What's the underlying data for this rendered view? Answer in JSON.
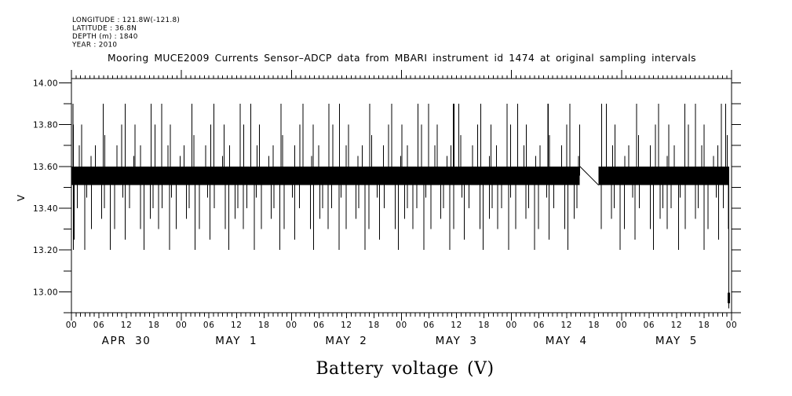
{
  "header": {
    "meta_lines": [
      "LONGITUDE : 121.8W(-121.8)",
      "LATITUDE : 36.8N",
      "DEPTH (m) : 1840",
      "YEAR : 2010"
    ],
    "title": "Mooring MUCE2009 Currents Sensor–ADCP data from MBARI instrument id 1474 at original sampling intervals"
  },
  "axes": {
    "y_label": "V",
    "bottom_label": "Battery voltage (V)",
    "y_major_tick_labels": [
      "13.00",
      "13.20",
      "13.40",
      "13.60",
      "13.80",
      "14.00"
    ],
    "x_hour_tick_sequence": [
      "00",
      "06",
      "12",
      "18"
    ],
    "day_labels": [
      "APR 30",
      "MAY 1",
      "MAY 2",
      "MAY 3",
      "MAY 4",
      "MAY 5"
    ]
  },
  "chart_data": {
    "type": "line",
    "title": "Mooring MUCE2009 Currents Sensor–ADCP data from MBARI instrument id 1474 at original sampling intervals",
    "xlabel": "Battery voltage (V)",
    "ylabel": "V",
    "grid": false,
    "x_axis": {
      "start": "APR 30 00:00 (2010)",
      "end": "MAY 6 00:00 (2010)",
      "hours_total": 144,
      "minor_tick_every_hours": 1,
      "labeled_tick_every_hours": 6,
      "hour_tick_labels_repeating": [
        "00",
        "06",
        "12",
        "18"
      ],
      "day_labels": [
        "APR 30",
        "MAY 1",
        "MAY 2",
        "MAY 3",
        "MAY 4",
        "MAY 5"
      ]
    },
    "y_axis": {
      "min": 12.9,
      "max": 14.02,
      "major_ticks": [
        13.0,
        13.2,
        13.4,
        13.6,
        13.8,
        14.0
      ],
      "minor_step": 0.1,
      "units": "V"
    },
    "baseline_band": {
      "low": 13.51,
      "high": 13.6,
      "segments_hours": [
        [
          0.0,
          110.9
        ],
        [
          115.0,
          143.5
        ]
      ],
      "description": "battery voltage oscillates densely between 13.5 and 13.6 V (renders as solid band)"
    },
    "gap": {
      "start_hour": 110.9,
      "end_hour": 115.0,
      "connector": [
        [
          110.9,
          13.6
        ],
        [
          115.0,
          13.51
        ]
      ]
    },
    "final_drop": {
      "hour": 143.4,
      "value": 12.92,
      "thick_mark_v": [
        12.995,
        12.945
      ]
    },
    "up_spikes": [
      [
        0.3,
        13.9
      ],
      [
        0.45,
        13.8
      ],
      [
        1.7,
        13.7
      ],
      [
        2.2,
        13.8
      ],
      [
        4.3,
        13.65
      ],
      [
        5.2,
        13.7
      ],
      [
        6.9,
        13.9
      ],
      [
        7.3,
        13.75
      ],
      [
        9.9,
        13.7
      ],
      [
        11.0,
        13.8
      ],
      [
        11.7,
        13.9
      ],
      [
        13.6,
        13.65
      ],
      [
        13.9,
        13.8
      ],
      [
        15.1,
        13.7
      ],
      [
        17.4,
        13.9
      ],
      [
        18.2,
        13.8
      ],
      [
        19.7,
        13.9
      ],
      [
        21.1,
        13.7
      ],
      [
        21.6,
        13.8
      ],
      [
        23.7,
        13.65
      ],
      [
        24.6,
        13.7
      ],
      [
        26.3,
        13.9
      ],
      [
        26.7,
        13.75
      ],
      [
        29.3,
        13.7
      ],
      [
        30.4,
        13.8
      ],
      [
        31.1,
        13.9
      ],
      [
        33.0,
        13.65
      ],
      [
        33.3,
        13.8
      ],
      [
        34.5,
        13.7
      ],
      [
        36.8,
        13.9
      ],
      [
        37.6,
        13.8
      ],
      [
        39.1,
        13.9
      ],
      [
        40.5,
        13.7
      ],
      [
        41.0,
        13.8
      ],
      [
        43.1,
        13.65
      ],
      [
        44.0,
        13.7
      ],
      [
        45.7,
        13.9
      ],
      [
        46.1,
        13.75
      ],
      [
        48.7,
        13.7
      ],
      [
        49.8,
        13.8
      ],
      [
        50.5,
        13.9
      ],
      [
        52.4,
        13.65
      ],
      [
        52.7,
        13.8
      ],
      [
        53.9,
        13.7
      ],
      [
        56.2,
        13.9
      ],
      [
        57.0,
        13.8
      ],
      [
        58.5,
        13.9
      ],
      [
        59.9,
        13.7
      ],
      [
        60.4,
        13.8
      ],
      [
        62.5,
        13.65
      ],
      [
        63.4,
        13.7
      ],
      [
        65.1,
        13.9
      ],
      [
        65.5,
        13.75
      ],
      [
        68.1,
        13.7
      ],
      [
        69.2,
        13.8
      ],
      [
        69.9,
        13.9
      ],
      [
        71.8,
        13.65
      ],
      [
        72.1,
        13.8
      ],
      [
        73.3,
        13.7
      ],
      [
        75.6,
        13.9
      ],
      [
        76.4,
        13.8
      ],
      [
        77.9,
        13.9
      ],
      [
        79.3,
        13.7
      ],
      [
        79.8,
        13.8
      ],
      [
        81.9,
        13.65
      ],
      [
        82.8,
        13.7
      ],
      [
        83.3,
        13.9
      ],
      [
        83.45,
        13.9
      ],
      [
        84.5,
        13.9
      ],
      [
        84.9,
        13.75
      ],
      [
        87.5,
        13.7
      ],
      [
        88.6,
        13.8
      ],
      [
        89.3,
        13.9
      ],
      [
        91.2,
        13.65
      ],
      [
        91.5,
        13.8
      ],
      [
        92.7,
        13.7
      ],
      [
        95.0,
        13.9
      ],
      [
        95.8,
        13.8
      ],
      [
        97.3,
        13.9
      ],
      [
        98.7,
        13.7
      ],
      [
        99.2,
        13.8
      ],
      [
        101.3,
        13.65
      ],
      [
        102.2,
        13.7
      ],
      [
        103.9,
        13.9
      ],
      [
        104.05,
        13.9
      ],
      [
        104.3,
        13.75
      ],
      [
        106.9,
        13.7
      ],
      [
        108.0,
        13.8
      ],
      [
        108.7,
        13.9
      ],
      [
        110.6,
        13.65
      ],
      [
        110.9,
        13.8
      ],
      [
        115.7,
        13.9
      ],
      [
        116.7,
        13.9
      ],
      [
        118.1,
        13.7
      ],
      [
        118.6,
        13.8
      ],
      [
        120.7,
        13.65
      ],
      [
        121.6,
        13.7
      ],
      [
        123.3,
        13.9
      ],
      [
        123.7,
        13.75
      ],
      [
        126.3,
        13.7
      ],
      [
        127.4,
        13.8
      ],
      [
        128.1,
        13.9
      ],
      [
        130.0,
        13.65
      ],
      [
        130.3,
        13.8
      ],
      [
        131.5,
        13.7
      ],
      [
        133.8,
        13.9
      ],
      [
        134.6,
        13.8
      ],
      [
        136.1,
        13.9
      ],
      [
        137.5,
        13.7
      ],
      [
        138.0,
        13.8
      ],
      [
        140.1,
        13.65
      ],
      [
        141.0,
        13.7
      ],
      [
        141.8,
        13.9
      ],
      [
        142.7,
        13.9
      ],
      [
        143.1,
        13.75
      ]
    ],
    "down_spikes": [
      [
        0.45,
        13.2
      ],
      [
        0.5,
        13.3
      ],
      [
        0.6,
        13.25
      ],
      [
        1.3,
        13.4
      ],
      [
        2.9,
        13.2
      ],
      [
        3.3,
        13.45
      ],
      [
        4.4,
        13.3
      ],
      [
        6.6,
        13.35
      ],
      [
        7.2,
        13.4
      ],
      [
        8.5,
        13.2
      ],
      [
        9.4,
        13.3
      ],
      [
        11.2,
        13.45
      ],
      [
        11.7,
        13.25
      ],
      [
        12.7,
        13.4
      ],
      [
        15.1,
        13.3
      ],
      [
        15.8,
        13.2
      ],
      [
        17.2,
        13.35
      ],
      [
        17.8,
        13.4
      ],
      [
        19.0,
        13.3
      ],
      [
        19.8,
        13.4
      ],
      [
        21.4,
        13.2
      ],
      [
        21.8,
        13.45
      ],
      [
        22.9,
        13.3
      ],
      [
        25.1,
        13.35
      ],
      [
        25.7,
        13.4
      ],
      [
        27.0,
        13.2
      ],
      [
        27.9,
        13.3
      ],
      [
        29.7,
        13.45
      ],
      [
        30.2,
        13.25
      ],
      [
        31.2,
        13.4
      ],
      [
        33.6,
        13.3
      ],
      [
        34.3,
        13.2
      ],
      [
        35.7,
        13.35
      ],
      [
        36.3,
        13.4
      ],
      [
        37.5,
        13.3
      ],
      [
        38.3,
        13.4
      ],
      [
        39.9,
        13.2
      ],
      [
        40.3,
        13.45
      ],
      [
        41.4,
        13.3
      ],
      [
        43.6,
        13.35
      ],
      [
        44.2,
        13.4
      ],
      [
        45.5,
        13.2
      ],
      [
        46.4,
        13.3
      ],
      [
        48.2,
        13.45
      ],
      [
        48.7,
        13.25
      ],
      [
        49.7,
        13.4
      ],
      [
        52.1,
        13.3
      ],
      [
        52.8,
        13.2
      ],
      [
        54.2,
        13.35
      ],
      [
        54.8,
        13.4
      ],
      [
        56.0,
        13.3
      ],
      [
        56.8,
        13.4
      ],
      [
        58.4,
        13.2
      ],
      [
        58.8,
        13.45
      ],
      [
        59.9,
        13.3
      ],
      [
        62.1,
        13.35
      ],
      [
        62.7,
        13.4
      ],
      [
        64.0,
        13.2
      ],
      [
        64.9,
        13.3
      ],
      [
        66.7,
        13.45
      ],
      [
        67.2,
        13.25
      ],
      [
        68.2,
        13.4
      ],
      [
        70.6,
        13.3
      ],
      [
        71.3,
        13.2
      ],
      [
        72.7,
        13.35
      ],
      [
        73.3,
        13.4
      ],
      [
        74.5,
        13.3
      ],
      [
        75.3,
        13.4
      ],
      [
        76.9,
        13.2
      ],
      [
        77.3,
        13.45
      ],
      [
        78.4,
        13.3
      ],
      [
        80.6,
        13.35
      ],
      [
        81.2,
        13.4
      ],
      [
        82.5,
        13.2
      ],
      [
        83.4,
        13.3
      ],
      [
        85.2,
        13.45
      ],
      [
        85.7,
        13.25
      ],
      [
        86.7,
        13.4
      ],
      [
        89.1,
        13.3
      ],
      [
        89.8,
        13.2
      ],
      [
        91.2,
        13.35
      ],
      [
        91.8,
        13.4
      ],
      [
        93.0,
        13.3
      ],
      [
        93.8,
        13.4
      ],
      [
        95.4,
        13.2
      ],
      [
        95.8,
        13.45
      ],
      [
        96.9,
        13.3
      ],
      [
        99.1,
        13.35
      ],
      [
        99.7,
        13.4
      ],
      [
        101.0,
        13.2
      ],
      [
        101.9,
        13.3
      ],
      [
        103.7,
        13.45
      ],
      [
        104.2,
        13.25
      ],
      [
        105.2,
        13.4
      ],
      [
        107.6,
        13.3
      ],
      [
        108.3,
        13.2
      ],
      [
        109.7,
        13.35
      ],
      [
        110.3,
        13.4
      ],
      [
        115.6,
        13.3
      ],
      [
        117.8,
        13.35
      ],
      [
        118.4,
        13.4
      ],
      [
        119.7,
        13.2
      ],
      [
        120.6,
        13.3
      ],
      [
        122.4,
        13.45
      ],
      [
        122.9,
        13.25
      ],
      [
        123.9,
        13.4
      ],
      [
        126.3,
        13.3
      ],
      [
        127.0,
        13.2
      ],
      [
        128.4,
        13.35
      ],
      [
        129.0,
        13.4
      ],
      [
        130.0,
        13.3
      ],
      [
        130.8,
        13.4
      ],
      [
        132.4,
        13.2
      ],
      [
        132.8,
        13.45
      ],
      [
        133.9,
        13.3
      ],
      [
        136.1,
        13.35
      ],
      [
        136.7,
        13.4
      ],
      [
        138.0,
        13.2
      ],
      [
        138.9,
        13.3
      ],
      [
        140.7,
        13.45
      ],
      [
        141.2,
        13.25
      ],
      [
        142.2,
        13.4
      ],
      [
        143.3,
        13.3
      ]
    ],
    "colors": {
      "ink": "#000000",
      "background": "#ffffff"
    }
  }
}
